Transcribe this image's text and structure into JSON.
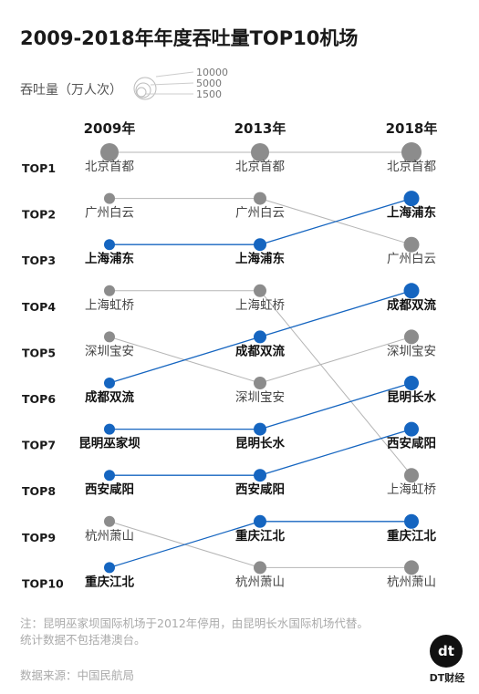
{
  "title": "2009-2018年年度吞吐量TOP10机场",
  "legend": {
    "label": "吞吐量（万人次）",
    "values": [
      "10000",
      "5000",
      "1500"
    ]
  },
  "footer": {
    "note_line1": "注：昆明巫家坝国际机场于2012年停用，由昆明长水国际机场代替。",
    "note_line2": "统计数据不包括港澳台。",
    "source": "数据来源：中国民航局",
    "brand": "DT财经",
    "logo": "dt"
  },
  "colors": {
    "highlight": "#1565c0",
    "normal": "#8c8c8c",
    "line_normal": "#b5b5b5"
  },
  "chart_data": {
    "type": "slope",
    "title": "2009-2018年年度吞吐量TOP10机场",
    "years": [
      "2009年",
      "2013年",
      "2018年"
    ],
    "ranks": [
      "TOP1",
      "TOP2",
      "TOP3",
      "TOP4",
      "TOP5",
      "TOP6",
      "TOP7",
      "TOP8",
      "TOP9",
      "TOP10"
    ],
    "columns": [
      [
        "北京首都",
        "广州白云",
        "上海浦东",
        "上海虹桥",
        "深圳宝安",
        "成都双流",
        "昆明巫家坝",
        "西安咸阳",
        "杭州萧山",
        "重庆江北"
      ],
      [
        "北京首都",
        "广州白云",
        "上海浦东",
        "上海虹桥",
        "成都双流",
        "深圳宝安",
        "昆明长水",
        "西安咸阳",
        "重庆江北",
        "杭州萧山"
      ],
      [
        "北京首都",
        "上海浦东",
        "广州白云",
        "成都双流",
        "深圳宝安",
        "昆明长水",
        "西安咸阳",
        "上海虹桥",
        "重庆江北",
        "杭州萧山"
      ]
    ],
    "highlighted": [
      "上海浦东",
      "成都双流",
      "昆明巫家坝",
      "昆明长水",
      "西安咸阳",
      "重庆江北"
    ],
    "links": [
      {
        "from": [
          "北京首都",
          "北京首都"
        ],
        "to": [
          "北京首都",
          "北京首都"
        ],
        "ranks": [
          1,
          1,
          1
        ]
      },
      {
        "ranks": [
          2,
          2,
          3
        ]
      },
      {
        "ranks": [
          3,
          3,
          2
        ]
      },
      {
        "ranks": [
          4,
          4,
          8
        ]
      },
      {
        "ranks": [
          5,
          6,
          5
        ]
      },
      {
        "ranks": [
          6,
          5,
          4
        ]
      },
      {
        "ranks": [
          7,
          7,
          6
        ]
      },
      {
        "ranks": [
          8,
          8,
          7
        ]
      },
      {
        "ranks": [
          9,
          10,
          10
        ]
      },
      {
        "ranks": [
          10,
          9,
          9
        ]
      }
    ],
    "legend_title": "吞吐量（万人次）",
    "size_legend": [
      10000,
      5000,
      1500
    ]
  }
}
